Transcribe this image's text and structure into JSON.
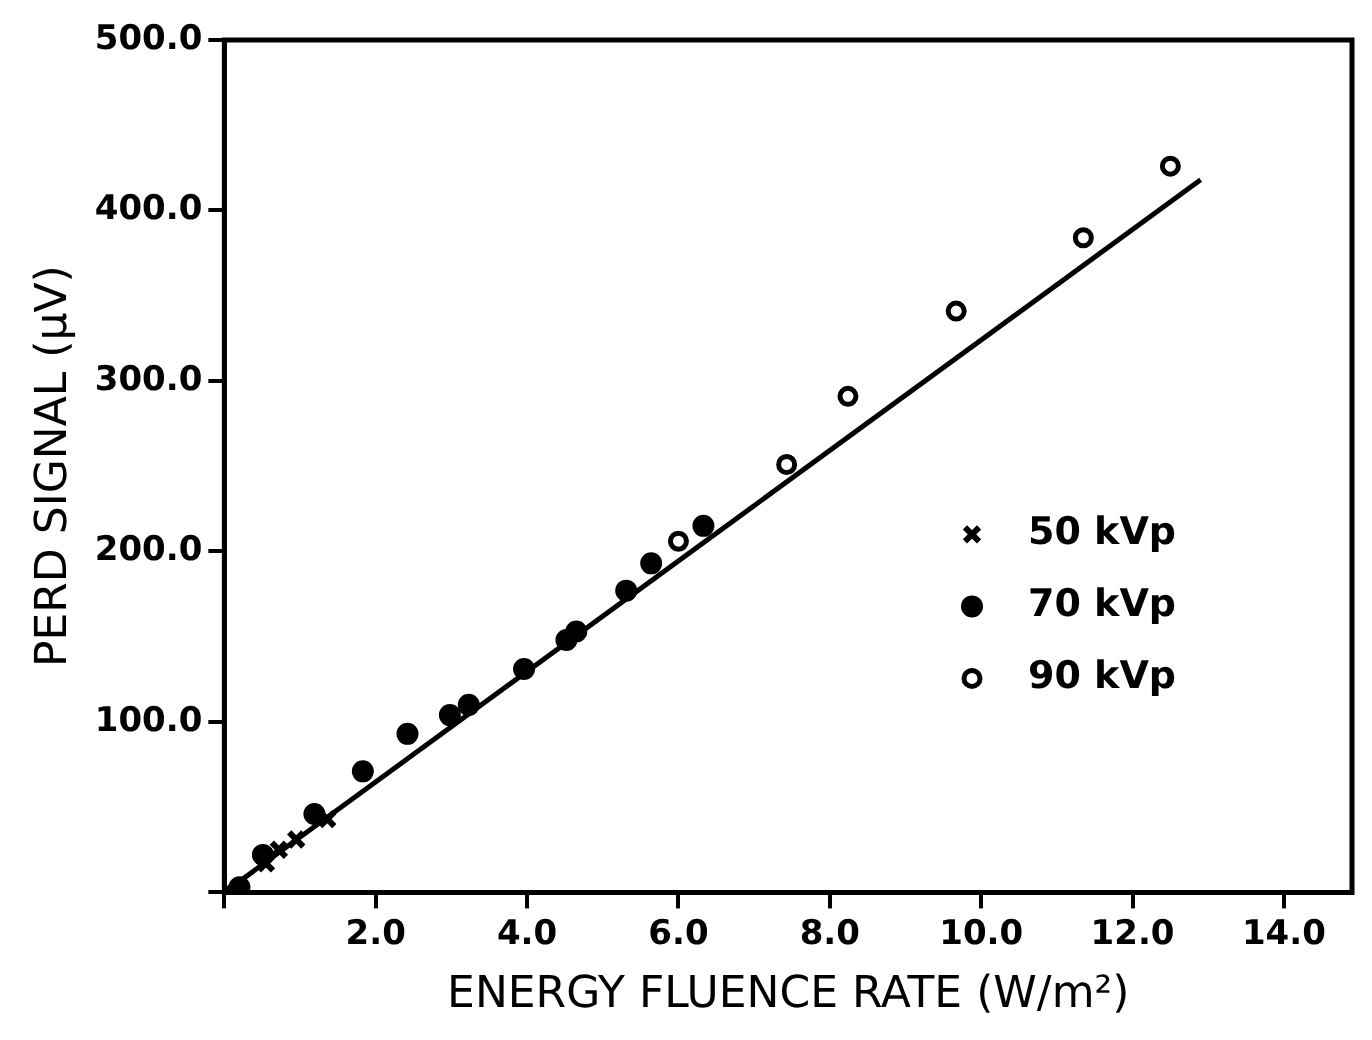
{
  "chart_data": {
    "type": "scatter",
    "xlabel": "ENERGY FLUENCE RATE (W/m²)",
    "ylabel": "PERD SIGNAL (μV)",
    "xlim": [
      0,
      14.9
    ],
    "ylim": [
      0,
      500
    ],
    "xticks": [
      {
        "value": 0,
        "label": null
      },
      {
        "value": 2,
        "label": "2.0"
      },
      {
        "value": 4,
        "label": "4.0"
      },
      {
        "value": 6,
        "label": "6.0"
      },
      {
        "value": 8,
        "label": "8.0"
      },
      {
        "value": 10,
        "label": "10.0"
      },
      {
        "value": 12,
        "label": "12.0"
      },
      {
        "value": 14,
        "label": "14.0"
      }
    ],
    "yticks": [
      {
        "value": 0,
        "label": null
      },
      {
        "value": 100,
        "label": "100.0"
      },
      {
        "value": 200,
        "label": "200.0"
      },
      {
        "value": 300,
        "label": "300.0"
      },
      {
        "value": 400,
        "label": "400.0"
      },
      {
        "value": 500,
        "label": "500.0"
      }
    ],
    "grid": false,
    "legend": "right",
    "series": [
      {
        "name": "50 kVp",
        "color": "#000000",
        "marker": "cross",
        "x": [
          0.14,
          0.55,
          0.72,
          0.95,
          1.36
        ],
        "values": [
          0,
          17,
          25,
          31,
          43
        ]
      },
      {
        "name": "70 kVp",
        "color": "#000000",
        "marker": "circle",
        "x": [
          0.2,
          0.51,
          1.19,
          1.83,
          2.42,
          2.98,
          3.23,
          3.96,
          4.52,
          4.65,
          5.31,
          5.64,
          6.33
        ],
        "values": [
          3,
          22,
          46,
          71,
          93,
          104,
          110,
          131,
          148,
          153,
          177,
          193,
          215
        ]
      },
      {
        "name": "90 kVp",
        "color": "#000000",
        "marker": "circle_open",
        "x": [
          6.0,
          7.43,
          8.24,
          9.67,
          11.35,
          12.5
        ],
        "values": [
          206,
          251,
          291,
          341,
          384,
          426
        ]
      },
      {
        "type": "line",
        "color": "#000000",
        "marker": "none",
        "line_style": "solid",
        "x": [
          0,
          12.9
        ],
        "values": [
          0,
          418
        ]
      }
    ]
  }
}
